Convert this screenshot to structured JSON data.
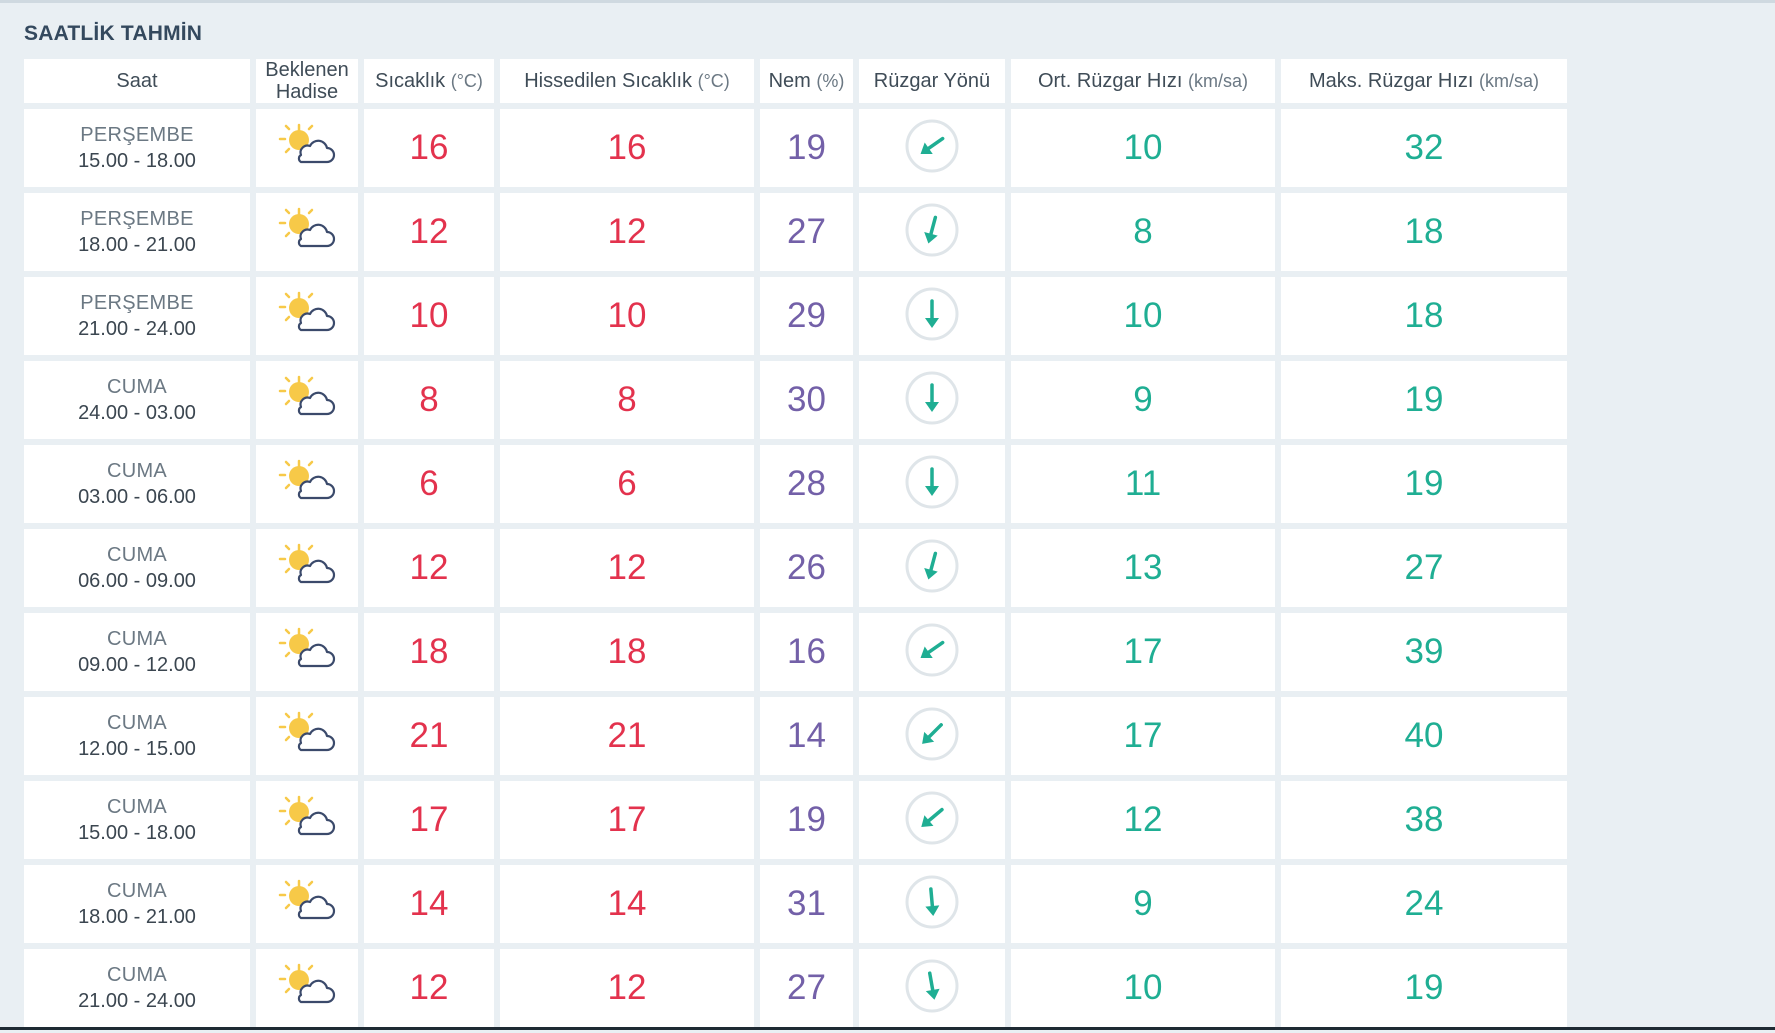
{
  "section": {
    "title": "SAATLİK TAHMİN"
  },
  "headers": [
    {
      "label": "Saat",
      "unit": ""
    },
    {
      "label": "Beklenen Hadise",
      "unit": ""
    },
    {
      "label": "Sıcaklık",
      "unit": "(°C)"
    },
    {
      "label": "Hissedilen Sıcaklık",
      "unit": "(°C)"
    },
    {
      "label": "Nem",
      "unit": "(%)"
    },
    {
      "label": "Rüzgar Yönü",
      "unit": ""
    },
    {
      "label": "Ort. Rüzgar Hızı",
      "unit": "(km/sa)"
    },
    {
      "label": "Maks. Rüzgar Hızı",
      "unit": "(km/sa)"
    }
  ],
  "rows": [
    {
      "day": "PERŞEMBE",
      "time": "15.00 - 18.00",
      "icon": "partly-cloudy-icon",
      "temp": "16",
      "feels": "16",
      "humidity": "19",
      "wind_dir_deg": 55,
      "wind_avg": "10",
      "wind_max": "32"
    },
    {
      "day": "PERŞEMBE",
      "time": "18.00 - 21.00",
      "icon": "partly-cloudy-icon",
      "temp": "12",
      "feels": "12",
      "humidity": "27",
      "wind_dir_deg": 15,
      "wind_avg": "8",
      "wind_max": "18"
    },
    {
      "day": "PERŞEMBE",
      "time": "21.00 - 24.00",
      "icon": "partly-cloudy-icon",
      "temp": "10",
      "feels": "10",
      "humidity": "29",
      "wind_dir_deg": 0,
      "wind_avg": "10",
      "wind_max": "18"
    },
    {
      "day": "CUMA",
      "time": "24.00 - 03.00",
      "icon": "partly-cloudy-icon",
      "temp": "8",
      "feels": "8",
      "humidity": "30",
      "wind_dir_deg": 0,
      "wind_avg": "9",
      "wind_max": "19"
    },
    {
      "day": "CUMA",
      "time": "03.00 - 06.00",
      "icon": "partly-cloudy-icon",
      "temp": "6",
      "feels": "6",
      "humidity": "28",
      "wind_dir_deg": 0,
      "wind_avg": "11",
      "wind_max": "19"
    },
    {
      "day": "CUMA",
      "time": "06.00 - 09.00",
      "icon": "partly-cloudy-icon",
      "temp": "12",
      "feels": "12",
      "humidity": "26",
      "wind_dir_deg": 15,
      "wind_avg": "13",
      "wind_max": "27"
    },
    {
      "day": "CUMA",
      "time": "09.00 - 12.00",
      "icon": "partly-cloudy-icon",
      "temp": "18",
      "feels": "18",
      "humidity": "16",
      "wind_dir_deg": 55,
      "wind_avg": "17",
      "wind_max": "39"
    },
    {
      "day": "CUMA",
      "time": "12.00 - 15.00",
      "icon": "partly-cloudy-icon",
      "temp": "21",
      "feels": "21",
      "humidity": "14",
      "wind_dir_deg": 45,
      "wind_avg": "17",
      "wind_max": "40"
    },
    {
      "day": "CUMA",
      "time": "15.00 - 18.00",
      "icon": "partly-cloudy-icon",
      "temp": "17",
      "feels": "17",
      "humidity": "19",
      "wind_dir_deg": 50,
      "wind_avg": "12",
      "wind_max": "38"
    },
    {
      "day": "CUMA",
      "time": "18.00 - 21.00",
      "icon": "partly-cloudy-icon",
      "temp": "14",
      "feels": "14",
      "humidity": "31",
      "wind_dir_deg": -5,
      "wind_avg": "9",
      "wind_max": "24"
    },
    {
      "day": "CUMA",
      "time": "21.00 - 24.00",
      "icon": "partly-cloudy-icon",
      "temp": "12",
      "feels": "12",
      "humidity": "27",
      "wind_dir_deg": -10,
      "wind_avg": "10",
      "wind_max": "19"
    }
  ],
  "colors": {
    "temperature": "#e3324d",
    "humidity": "#7360a8",
    "wind": "#1fae93",
    "sun": "#f7c948",
    "cloud_outline": "#3b4a6b"
  }
}
